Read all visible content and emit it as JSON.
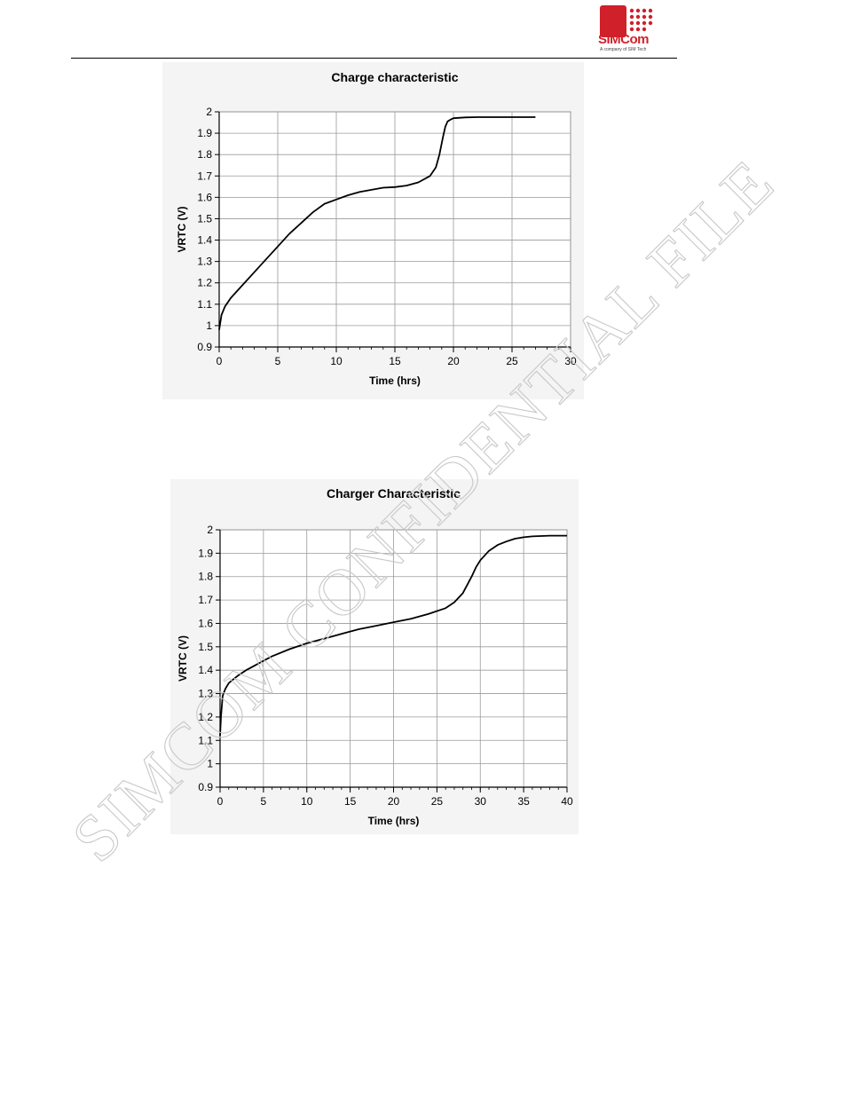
{
  "header": {
    "logo_text": "SIMCom",
    "logo_tagline": "A company of SIM Tech",
    "brand_color": "#d0202a"
  },
  "watermark": {
    "text": "SIMCOM CONFIDENTIAL FILE"
  },
  "chart_data": [
    {
      "type": "line",
      "title": "Charge characteristic",
      "xlabel": "Time (hrs)",
      "ylabel": "VRTC (V)",
      "xlim": [
        0,
        30
      ],
      "ylim": [
        0.9,
        2.0
      ],
      "xticks": [
        0,
        5,
        10,
        15,
        20,
        25,
        30
      ],
      "xtick_labels": [
        "0",
        "5",
        "10",
        "15",
        "20",
        "25",
        "30"
      ],
      "yticks": [
        0.9,
        1.0,
        1.1,
        1.2,
        1.3,
        1.4,
        1.5,
        1.6,
        1.7,
        1.8,
        1.9,
        2.0
      ],
      "ytick_labels": [
        "0.9",
        "1",
        "1.1",
        "1.2",
        "1.3",
        "1.4",
        "1.5",
        "1.6",
        "1.7",
        "1.8",
        "1.9",
        "2"
      ],
      "grid": true,
      "series": [
        {
          "x": [
            0,
            0.2,
            0.5,
            1,
            2,
            3,
            4,
            5,
            6,
            7,
            8,
            9,
            10,
            11,
            12,
            13,
            14,
            15,
            16,
            17,
            18,
            18.5,
            18.8,
            19.1,
            19.3,
            19.5,
            19.8,
            20,
            21,
            22,
            24,
            26,
            27
          ],
          "y": [
            0.98,
            1.05,
            1.09,
            1.13,
            1.19,
            1.25,
            1.31,
            1.37,
            1.43,
            1.48,
            1.53,
            1.57,
            1.59,
            1.61,
            1.625,
            1.635,
            1.645,
            1.648,
            1.655,
            1.67,
            1.7,
            1.74,
            1.8,
            1.88,
            1.93,
            1.955,
            1.965,
            1.97,
            1.974,
            1.975,
            1.975,
            1.975,
            1.975
          ]
        }
      ]
    },
    {
      "type": "line",
      "title": "Charger Characteristic",
      "xlabel": "Time (hrs)",
      "ylabel": "VRTC (V)",
      "xlim": [
        0,
        40
      ],
      "ylim": [
        0.9,
        2.0
      ],
      "xticks": [
        0,
        5,
        10,
        15,
        20,
        25,
        30,
        35,
        40
      ],
      "xtick_labels": [
        "0",
        "5",
        "10",
        "15",
        "20",
        "25",
        "30",
        "35",
        "40"
      ],
      "yticks": [
        0.9,
        1.0,
        1.1,
        1.2,
        1.3,
        1.4,
        1.5,
        1.6,
        1.7,
        1.8,
        1.9,
        2.0
      ],
      "ytick_labels": [
        "0.9",
        "1",
        "1.1",
        "1.2",
        "1.3",
        "1.4",
        "1.5",
        "1.6",
        "1.7",
        "1.8",
        "1.9",
        "2"
      ],
      "grid": true,
      "series": [
        {
          "x": [
            0,
            0.1,
            0.3,
            0.6,
            1,
            2,
            3,
            4,
            5,
            6,
            8,
            10,
            12,
            14,
            16,
            18,
            20,
            22,
            24,
            26,
            27,
            28,
            29,
            29.5,
            30,
            31,
            32,
            33,
            34,
            35,
            36,
            38,
            40
          ],
          "y": [
            1.12,
            1.2,
            1.29,
            1.32,
            1.345,
            1.375,
            1.4,
            1.42,
            1.44,
            1.46,
            1.49,
            1.515,
            1.535,
            1.555,
            1.575,
            1.59,
            1.605,
            1.62,
            1.64,
            1.665,
            1.69,
            1.73,
            1.8,
            1.84,
            1.87,
            1.91,
            1.935,
            1.95,
            1.962,
            1.968,
            1.972,
            1.975,
            1.975
          ]
        }
      ]
    }
  ]
}
